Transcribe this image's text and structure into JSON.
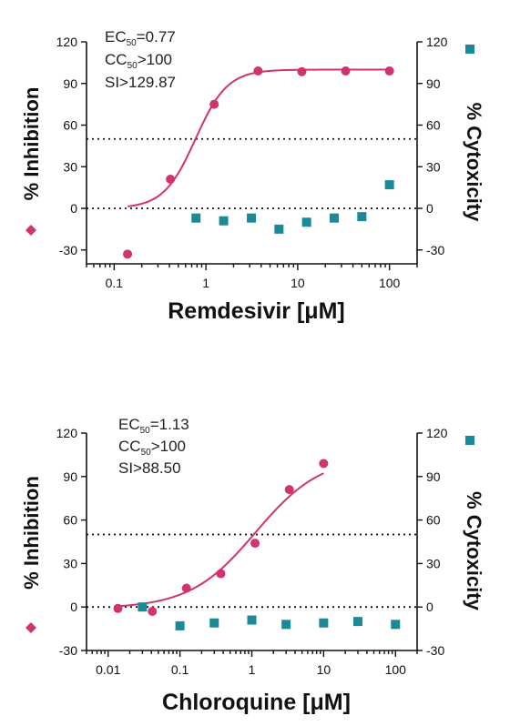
{
  "colors": {
    "inhibition": "#d0336f",
    "cytotoxicity": "#1c8a96",
    "axis": "#111111"
  },
  "icons": {
    "inhibition_marker": "diamond-icon",
    "cytotoxicity_marker": "square-icon"
  },
  "chart_data": [
    {
      "type": "scatter",
      "xlabel": "Remdesivir [μM]",
      "ylabel_left": "% Inhibition",
      "ylabel_right": "% Cytoxicity",
      "x_scale": "log",
      "xlim": [
        0.05,
        200
      ],
      "ylim": [
        -40,
        120
      ],
      "x_ticks": [
        0.1,
        1,
        10,
        100
      ],
      "x_tick_labels": [
        "0.1",
        "1",
        "10",
        "100"
      ],
      "y_ticks": [
        -30,
        0,
        30,
        60,
        90,
        120
      ],
      "y_tick_labels": [
        "-30",
        "0",
        "30",
        "60",
        "90",
        "120"
      ],
      "reference_lines": [
        50,
        0
      ],
      "stats": {
        "ec50": {
          "prefix": "EC",
          "sub": "50",
          "suffix": "=0.77"
        },
        "cc50": {
          "prefix": "CC",
          "sub": "50",
          "suffix": ">100"
        },
        "si": "SI>129.87"
      },
      "inhibition": {
        "x": [
          0.14,
          0.41,
          1.23,
          3.7,
          11.1,
          33.3,
          100
        ],
        "y": [
          -33,
          21,
          75,
          99,
          98.5,
          99,
          99
        ],
        "fit": {
          "bottom": 0,
          "top": 100,
          "ec50": 0.77,
          "hill": 2.5,
          "x_range": [
            0.14,
            100
          ]
        }
      },
      "cytotoxicity": {
        "x": [
          0.78,
          1.56,
          3.13,
          6.25,
          12.5,
          25,
          50,
          100
        ],
        "y": [
          -7,
          -9,
          -7,
          -15,
          -10,
          -7,
          -6,
          17
        ]
      }
    },
    {
      "type": "scatter",
      "xlabel": "Chloroquine [μM]",
      "ylabel_left": "% Inhibition",
      "ylabel_right": "% Cytoxicity",
      "x_scale": "log",
      "xlim": [
        0.005,
        200
      ],
      "ylim": [
        -30,
        120
      ],
      "x_ticks": [
        0.01,
        0.1,
        1,
        10,
        100
      ],
      "x_tick_labels": [
        "0.01",
        "0.1",
        "1",
        "10",
        "100"
      ],
      "y_ticks": [
        -30,
        0,
        30,
        60,
        90,
        120
      ],
      "y_tick_labels": [
        "-30",
        "0",
        "30",
        "60",
        "90",
        "120"
      ],
      "reference_lines": [
        50,
        0
      ],
      "stats": {
        "ec50": {
          "prefix": "EC",
          "sub": "50",
          "suffix": "=1.13"
        },
        "cc50": {
          "prefix": "CC",
          "sub": "50",
          "suffix": ">100"
        },
        "si": "SI>88.50"
      },
      "inhibition": {
        "x": [
          0.0137,
          0.0412,
          0.123,
          0.37,
          1.11,
          3.33,
          10
        ],
        "y": [
          -1,
          -3,
          13,
          23,
          44,
          81,
          99
        ],
        "fit": {
          "bottom": -1,
          "top": 104,
          "ec50": 1.13,
          "hill": 0.95,
          "x_range": [
            0.0137,
            10
          ]
        }
      },
      "cytotoxicity": {
        "x": [
          0.03,
          0.1,
          0.3,
          1,
          3,
          10,
          30,
          100
        ],
        "y": [
          0,
          -13,
          -11,
          -9,
          -12,
          -11,
          -10,
          -12
        ]
      }
    }
  ]
}
